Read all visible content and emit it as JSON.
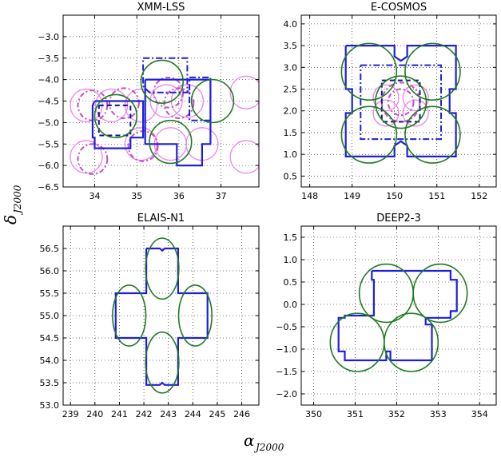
{
  "figure": {
    "xlabel": "α",
    "xlabel_sub": "J2000",
    "ylabel": "δ",
    "ylabel_sub": "J2000"
  },
  "colors": {
    "circle": "#1f7a1f",
    "outline": "#1f1fdb",
    "pink": "#ee82ee"
  },
  "chart_data": [
    {
      "type": "scatter",
      "title": "XMM-LSS",
      "xlim": [
        33.25,
        37.9
      ],
      "ylim": [
        -6.5,
        -2.5
      ],
      "xticks": [
        34,
        35,
        36,
        37
      ],
      "yticks": [
        -6.5,
        -6.0,
        -5.5,
        -5.0,
        -4.5,
        -4.0,
        -3.5,
        -3.0
      ],
      "xtick_labels": [
        "34",
        "35",
        "36",
        "37"
      ],
      "ytick_labels": [
        "−6.5",
        "−6.0",
        "−5.5",
        "−5.0",
        "−4.5",
        "−4.0",
        "−3.5",
        "−3.0"
      ],
      "grid": true,
      "green_circles": [
        [
          35.6,
          -4.05,
          0.5
        ],
        [
          36.8,
          -4.5,
          0.5
        ],
        [
          34.5,
          -4.85,
          0.5
        ],
        [
          35.8,
          -5.45,
          0.5
        ]
      ],
      "pink_circles": [
        [
          33.8,
          -4.6
        ],
        [
          34.4,
          -4.6
        ],
        [
          35.1,
          -4.6
        ],
        [
          35.7,
          -4.5
        ],
        [
          36.2,
          -4.5
        ],
        [
          37.6,
          -4.3
        ],
        [
          33.8,
          -5.8
        ],
        [
          35.1,
          -5.5
        ],
        [
          35.8,
          -5.5
        ],
        [
          36.55,
          -5.5
        ],
        [
          37.6,
          -5.8
        ]
      ],
      "pink_radius": 0.38,
      "solid_paths": [
        [
          [
            35.2,
            -4.0
          ],
          [
            36.75,
            -4.0
          ],
          [
            36.75,
            -5.5
          ],
          [
            36.55,
            -5.5
          ],
          [
            36.55,
            -6.0
          ],
          [
            35.95,
            -6.0
          ],
          [
            35.95,
            -5.5
          ],
          [
            35.2,
            -5.5
          ],
          [
            35.2,
            -4.0
          ]
        ],
        [
          [
            34.0,
            -4.5
          ],
          [
            35.15,
            -4.5
          ],
          [
            35.15,
            -5.35
          ],
          [
            34.85,
            -5.35
          ],
          [
            34.85,
            -5.6
          ],
          [
            34.0,
            -5.6
          ],
          [
            34.0,
            -5.35
          ],
          [
            33.95,
            -5.35
          ],
          [
            33.95,
            -4.6
          ],
          [
            34.0,
            -4.5
          ]
        ]
      ],
      "dashdot_paths": [
        [
          [
            35.15,
            -3.5
          ],
          [
            36.2,
            -3.5
          ],
          [
            36.2,
            -4.3
          ],
          [
            35.3,
            -4.3
          ],
          [
            35.15,
            -4.15
          ],
          [
            35.15,
            -3.5
          ]
        ],
        [
          [
            36.25,
            -3.95
          ],
          [
            36.75,
            -3.95
          ],
          [
            36.75,
            -4.95
          ],
          [
            36.25,
            -4.95
          ],
          [
            36.25,
            -3.95
          ]
        ]
      ],
      "dashed_paths": [
        [
          [
            34.1,
            -4.6
          ],
          [
            34.85,
            -4.6
          ],
          [
            34.85,
            -5.3
          ],
          [
            34.1,
            -5.3
          ],
          [
            34.1,
            -4.6
          ]
        ]
      ],
      "pink_dashdot_circles": [
        [
          33.95,
          -4.6,
          0.35
        ],
        [
          34.7,
          -4.55,
          0.35
        ],
        [
          35.75,
          -4.3,
          0.35
        ],
        [
          36.0,
          -4.55,
          0.35
        ],
        [
          33.95,
          -5.85,
          0.35
        ],
        [
          35.15,
          -5.55,
          0.35
        ]
      ]
    },
    {
      "type": "scatter",
      "title": "E-COSMOS",
      "xlim": [
        147.8,
        152.4
      ],
      "ylim": [
        0.25,
        4.2
      ],
      "xticks": [
        148,
        149,
        150,
        151,
        152
      ],
      "yticks": [
        0.5,
        1.0,
        1.5,
        2.0,
        2.5,
        3.0,
        3.5,
        4.0
      ],
      "xtick_labels": [
        "148",
        "149",
        "150",
        "151",
        "152"
      ],
      "ytick_labels": [
        "0.5",
        "1.0",
        "1.5",
        "2.0",
        "2.5",
        "3.0",
        "3.5",
        "4.0"
      ],
      "grid": true,
      "green_circles": [
        [
          149.4,
          2.9,
          0.65
        ],
        [
          150.9,
          2.9,
          0.65
        ],
        [
          149.4,
          1.45,
          0.65
        ],
        [
          150.9,
          1.45,
          0.65
        ],
        [
          150.15,
          2.2,
          0.6
        ]
      ],
      "pink_circles": [
        [
          149.8,
          2.3
        ],
        [
          150.5,
          2.3
        ],
        [
          149.8,
          1.95
        ],
        [
          150.5,
          1.95
        ]
      ],
      "pink_radius": 0.3,
      "solid_paths": [
        [
          [
            148.85,
            3.5
          ],
          [
            150.0,
            3.5
          ],
          [
            150.0,
            3.25
          ],
          [
            150.15,
            3.15
          ],
          [
            150.3,
            3.25
          ],
          [
            150.3,
            3.5
          ],
          [
            151.45,
            3.5
          ],
          [
            151.45,
            2.5
          ],
          [
            151.3,
            2.5
          ],
          [
            151.3,
            1.95
          ],
          [
            151.45,
            1.95
          ],
          [
            151.45,
            0.95
          ],
          [
            150.3,
            0.95
          ],
          [
            150.3,
            1.2
          ],
          [
            150.15,
            1.3
          ],
          [
            150.0,
            1.2
          ],
          [
            150.0,
            0.95
          ],
          [
            148.85,
            0.95
          ],
          [
            148.85,
            1.95
          ],
          [
            149.0,
            1.95
          ],
          [
            149.0,
            2.5
          ],
          [
            148.85,
            2.5
          ],
          [
            148.85,
            3.5
          ]
        ]
      ],
      "dashdot_paths": [
        [
          [
            149.2,
            3.05
          ],
          [
            151.1,
            3.05
          ],
          [
            151.1,
            1.35
          ],
          [
            149.2,
            1.35
          ],
          [
            149.2,
            3.05
          ]
        ]
      ],
      "dashed_paths": [
        [
          [
            149.7,
            2.7
          ],
          [
            150.6,
            2.7
          ],
          [
            150.6,
            1.75
          ],
          [
            149.7,
            1.75
          ],
          [
            149.7,
            2.7
          ]
        ]
      ],
      "pink_dashdot_circles": [
        [
          150.15,
          2.2,
          0.45
        ],
        [
          150.15,
          2.2,
          0.3
        ]
      ]
    },
    {
      "type": "scatter",
      "title": "ELAIS-N1",
      "xlim": [
        238.7,
        246.7
      ],
      "ylim": [
        53.0,
        57.0
      ],
      "xticks": [
        239,
        240,
        241,
        242,
        243,
        244,
        245,
        246
      ],
      "yticks": [
        53.0,
        53.5,
        54.0,
        54.5,
        55.0,
        55.5,
        56.0,
        56.5
      ],
      "xtick_labels": [
        "239",
        "240",
        "241",
        "242",
        "243",
        "244",
        "245",
        "246"
      ],
      "ytick_labels": [
        "53.0",
        "53.5",
        "54.0",
        "54.5",
        "55.0",
        "55.5",
        "56.0",
        "56.5"
      ],
      "grid": true,
      "green_circles": [
        [
          242.75,
          56.05,
          0.68
        ],
        [
          241.4,
          55.0,
          0.68
        ],
        [
          244.1,
          55.0,
          0.68
        ],
        [
          242.75,
          53.95,
          0.68
        ]
      ],
      "pink_circles": [],
      "pink_radius": 0,
      "solid_paths": [
        [
          [
            242.1,
            56.5
          ],
          [
            242.65,
            56.5
          ],
          [
            242.75,
            56.45
          ],
          [
            242.85,
            56.5
          ],
          [
            243.4,
            56.5
          ],
          [
            243.4,
            55.5
          ],
          [
            244.6,
            55.5
          ],
          [
            244.6,
            54.5
          ],
          [
            243.4,
            54.5
          ],
          [
            243.4,
            53.45
          ],
          [
            242.85,
            53.45
          ],
          [
            242.75,
            53.5
          ],
          [
            242.65,
            53.45
          ],
          [
            242.1,
            53.45
          ],
          [
            242.1,
            54.5
          ],
          [
            240.85,
            54.5
          ],
          [
            240.85,
            55.5
          ],
          [
            242.1,
            55.5
          ],
          [
            242.1,
            56.5
          ]
        ]
      ],
      "dashdot_paths": [],
      "dashed_paths": [],
      "pink_dashdot_circles": []
    },
    {
      "type": "scatter",
      "title": "DEEP2-3",
      "xlim": [
        349.7,
        354.4
      ],
      "ylim": [
        -2.25,
        1.75
      ],
      "xticks": [
        350,
        351,
        352,
        353,
        354
      ],
      "yticks": [
        -2.0,
        -1.5,
        -1.0,
        -0.5,
        0.0,
        0.5,
        1.0,
        1.5
      ],
      "xtick_labels": [
        "350",
        "351",
        "352",
        "353",
        "354"
      ],
      "ytick_labels": [
        "−2.0",
        "−1.5",
        "−1.0",
        "−0.5",
        "0.0",
        "0.5",
        "1.0",
        "1.5"
      ],
      "grid": true,
      "green_circles": [
        [
          351.75,
          0.25,
          0.65
        ],
        [
          353.05,
          0.25,
          0.65
        ],
        [
          351.05,
          -0.85,
          0.65
        ],
        [
          352.35,
          -0.85,
          0.65
        ]
      ],
      "pink_circles": [],
      "pink_radius": 0,
      "solid_paths": [
        [
          [
            351.4,
            0.75
          ],
          [
            353.3,
            0.75
          ],
          [
            353.3,
            0.55
          ],
          [
            353.45,
            0.55
          ],
          [
            353.45,
            -0.15
          ],
          [
            353.3,
            -0.15
          ],
          [
            353.3,
            -0.3
          ],
          [
            352.7,
            -0.3
          ],
          [
            352.7,
            -0.45
          ],
          [
            352.85,
            -0.45
          ],
          [
            352.85,
            -1.25
          ],
          [
            351.85,
            -1.25
          ],
          [
            351.85,
            -1.05
          ],
          [
            351.75,
            -1.05
          ],
          [
            351.75,
            -1.25
          ],
          [
            350.75,
            -1.25
          ],
          [
            350.75,
            -1.05
          ],
          [
            350.6,
            -1.05
          ],
          [
            350.6,
            -0.3
          ],
          [
            350.75,
            -0.3
          ],
          [
            350.75,
            -0.25
          ],
          [
            351.45,
            -0.25
          ],
          [
            351.45,
            0.55
          ],
          [
            351.4,
            0.55
          ],
          [
            351.4,
            0.75
          ]
        ]
      ],
      "dashdot_paths": [],
      "dashed_paths": [],
      "pink_dashdot_circles": []
    }
  ]
}
